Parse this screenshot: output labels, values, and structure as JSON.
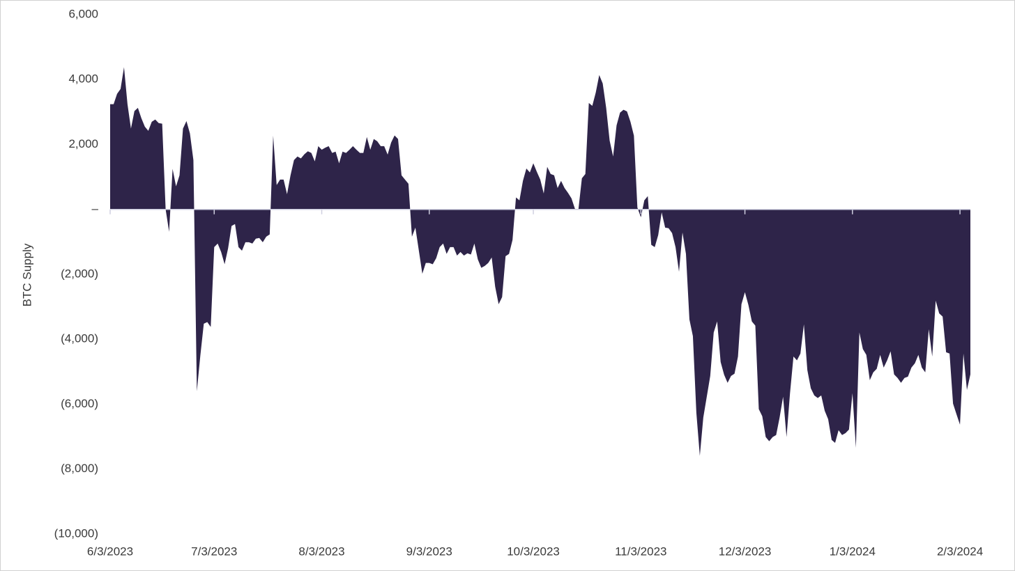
{
  "chart_data": {
    "type": "area",
    "y_label": "BTC Supply",
    "color": "#2e2449",
    "x": [
      "6/3/2023",
      "6/4/2023",
      "6/5/2023",
      "6/6/2023",
      "6/7/2023",
      "6/8/2023",
      "6/9/2023",
      "6/10/2023",
      "6/11/2023",
      "6/12/2023",
      "6/13/2023",
      "6/14/2023",
      "6/15/2023",
      "6/16/2023",
      "6/17/2023",
      "6/18/2023",
      "6/19/2023",
      "6/20/2023",
      "6/21/2023",
      "6/22/2023",
      "6/23/2023",
      "6/24/2023",
      "6/25/2023",
      "6/26/2023",
      "6/27/2023",
      "6/28/2023",
      "6/29/2023",
      "6/30/2023",
      "7/1/2023",
      "7/2/2023",
      "7/3/2023",
      "7/4/2023",
      "7/5/2023",
      "7/6/2023",
      "7/7/2023",
      "7/8/2023",
      "7/9/2023",
      "7/10/2023",
      "7/11/2023",
      "7/12/2023",
      "7/13/2023",
      "7/14/2023",
      "7/15/2023",
      "7/16/2023",
      "7/17/2023",
      "7/18/2023",
      "7/19/2023",
      "7/20/2023",
      "7/21/2023",
      "7/22/2023",
      "7/23/2023",
      "7/24/2023",
      "7/25/2023",
      "7/26/2023",
      "7/27/2023",
      "7/28/2023",
      "7/29/2023",
      "7/30/2023",
      "7/31/2023",
      "8/1/2023",
      "8/2/2023",
      "8/3/2023",
      "8/4/2023",
      "8/5/2023",
      "8/6/2023",
      "8/7/2023",
      "8/8/2023",
      "8/9/2023",
      "8/10/2023",
      "8/11/2023",
      "8/12/2023",
      "8/13/2023",
      "8/14/2023",
      "8/15/2023",
      "8/16/2023",
      "8/17/2023",
      "8/18/2023",
      "8/19/2023",
      "8/20/2023",
      "8/21/2023",
      "8/22/2023",
      "8/23/2023",
      "8/24/2023",
      "8/25/2023",
      "8/26/2023",
      "8/27/2023",
      "8/28/2023",
      "8/29/2023",
      "8/30/2023",
      "8/31/2023",
      "9/1/2023",
      "9/2/2023",
      "9/3/2023",
      "9/4/2023",
      "9/5/2023",
      "9/6/2023",
      "9/7/2023",
      "9/8/2023",
      "9/9/2023",
      "9/10/2023",
      "9/11/2023",
      "9/12/2023",
      "9/13/2023",
      "9/14/2023",
      "9/15/2023",
      "9/16/2023",
      "9/17/2023",
      "9/18/2023",
      "9/19/2023",
      "9/20/2023",
      "9/21/2023",
      "9/22/2023",
      "9/23/2023",
      "9/24/2023",
      "9/25/2023",
      "9/26/2023",
      "9/27/2023",
      "9/28/2023",
      "9/29/2023",
      "9/30/2023",
      "10/1/2023",
      "10/2/2023",
      "10/3/2023",
      "10/4/2023",
      "10/5/2023",
      "10/6/2023",
      "10/7/2023",
      "10/8/2023",
      "10/9/2023",
      "10/10/2023",
      "10/11/2023",
      "10/12/2023",
      "10/13/2023",
      "10/14/2023",
      "10/15/2023",
      "10/16/2023",
      "10/17/2023",
      "10/18/2023",
      "10/19/2023",
      "10/20/2023",
      "10/21/2023",
      "10/22/2023",
      "10/23/2023",
      "10/24/2023",
      "10/25/2023",
      "10/26/2023",
      "10/27/2023",
      "10/28/2023",
      "10/29/2023",
      "10/30/2023",
      "10/31/2023",
      "11/1/2023",
      "11/2/2023",
      "11/3/2023",
      "11/4/2023",
      "11/5/2023",
      "11/6/2023",
      "11/7/2023",
      "11/8/2023",
      "11/9/2023",
      "11/10/2023",
      "11/11/2023",
      "11/12/2023",
      "11/13/2023",
      "11/14/2023",
      "11/15/2023",
      "11/16/2023",
      "11/17/2023",
      "11/18/2023",
      "11/19/2023",
      "11/20/2023",
      "11/21/2023",
      "11/22/2023",
      "11/23/2023",
      "11/24/2023",
      "11/25/2023",
      "11/26/2023",
      "11/27/2023",
      "11/28/2023",
      "11/29/2023",
      "11/30/2023",
      "12/1/2023",
      "12/2/2023",
      "12/3/2023",
      "12/4/2023",
      "12/5/2023",
      "12/6/2023",
      "12/7/2023",
      "12/8/2023",
      "12/9/2023",
      "12/10/2023",
      "12/11/2023",
      "12/12/2023",
      "12/13/2023",
      "12/14/2023",
      "12/15/2023",
      "12/16/2023",
      "12/17/2023",
      "12/18/2023",
      "12/19/2023",
      "12/20/2023",
      "12/21/2023",
      "12/22/2023",
      "12/23/2023",
      "12/24/2023",
      "12/25/2023",
      "12/26/2023",
      "12/27/2023",
      "12/28/2023",
      "12/29/2023",
      "12/30/2023",
      "12/31/2023",
      "1/1/2024",
      "1/2/2024",
      "1/3/2024",
      "1/4/2024",
      "1/5/2024",
      "1/6/2024",
      "1/7/2024",
      "1/8/2024",
      "1/9/2024",
      "1/10/2024",
      "1/11/2024",
      "1/12/2024",
      "1/13/2024",
      "1/14/2024",
      "1/15/2024",
      "1/16/2024",
      "1/17/2024",
      "1/18/2024",
      "1/19/2024",
      "1/20/2024",
      "1/21/2024",
      "1/22/2024",
      "1/23/2024",
      "1/24/2024",
      "1/25/2024",
      "1/26/2024",
      "1/27/2024",
      "1/28/2024",
      "1/29/2024",
      "1/30/2024",
      "1/31/2024",
      "2/1/2024",
      "2/2/2024",
      "2/3/2024",
      "2/4/2024",
      "2/5/2024",
      "2/6/2024"
    ],
    "values": [
      3240,
      3240,
      3560,
      3710,
      4380,
      3240,
      2490,
      3030,
      3130,
      2810,
      2550,
      2420,
      2700,
      2770,
      2660,
      2640,
      0,
      -690,
      1250,
      710,
      1050,
      2490,
      2720,
      2340,
      1520,
      -5600,
      -4500,
      -3520,
      -3470,
      -3620,
      -1160,
      -1050,
      -1310,
      -1690,
      -1200,
      -510,
      -450,
      -1160,
      -1270,
      -1010,
      -1010,
      -1050,
      -900,
      -880,
      -1010,
      -840,
      -770,
      2270,
      750,
      920,
      920,
      470,
      1050,
      1520,
      1630,
      1570,
      1700,
      1790,
      1740,
      1480,
      1950,
      1840,
      1900,
      1950,
      1740,
      1780,
      1420,
      1780,
      1740,
      1840,
      1950,
      1840,
      1740,
      1740,
      2230,
      1840,
      2170,
      2100,
      1950,
      1950,
      1690,
      2060,
      2280,
      2170,
      1050,
      920,
      790,
      -840,
      -560,
      -1270,
      -1980,
      -1650,
      -1650,
      -1690,
      -1500,
      -1160,
      -1050,
      -1370,
      -1160,
      -1160,
      -1420,
      -1310,
      -1420,
      -1350,
      -1390,
      -1050,
      -1540,
      -1800,
      -1740,
      -1650,
      -1480,
      -2380,
      -2920,
      -2700,
      -1440,
      -1370,
      -940,
      370,
      280,
      880,
      1260,
      1140,
      1420,
      1160,
      920,
      490,
      1310,
      1090,
      1050,
      660,
      880,
      660,
      510,
      340,
      20,
      0,
      960,
      1090,
      3280,
      3190,
      3600,
      4140,
      3880,
      3130,
      2120,
      1630,
      2590,
      2980,
      3070,
      3020,
      2700,
      2270,
      60,
      -240,
      280,
      410,
      -1090,
      -1160,
      -790,
      -90,
      -560,
      -580,
      -730,
      -1160,
      -1920,
      -710,
      -1370,
      -3390,
      -3900,
      -6260,
      -7590,
      -6410,
      -5770,
      -5130,
      -3790,
      -3450,
      -4700,
      -5090,
      -5340,
      -5130,
      -5060,
      -4530,
      -2920,
      -2550,
      -2940,
      -3450,
      -3580,
      -6150,
      -6370,
      -7010,
      -7140,
      -7010,
      -6950,
      -6410,
      -5770,
      -7010,
      -5660,
      -4530,
      -4650,
      -4440,
      -3540,
      -4950,
      -5510,
      -5730,
      -5810,
      -5730,
      -6200,
      -6460,
      -7100,
      -7190,
      -6800,
      -6950,
      -6890,
      -6780,
      -5660,
      -7340,
      -3790,
      -4300,
      -4480,
      -5260,
      -5020,
      -4910,
      -4480,
      -4870,
      -4650,
      -4370,
      -5080,
      -5190,
      -5340,
      -5190,
      -5150,
      -4870,
      -4740,
      -4480,
      -4870,
      -5020,
      -3690,
      -4530,
      -2810,
      -3200,
      -3300,
      -4400,
      -4440,
      -5980,
      -6310,
      -6630,
      -4440,
      -5560,
      -5080
    ],
    "xlim": [
      "6/3/2023",
      "2/6/2024"
    ],
    "xticks": [
      "6/3/2023",
      "7/3/2023",
      "8/3/2023",
      "9/3/2023",
      "10/3/2023",
      "11/3/2023",
      "12/3/2023",
      "1/3/2024",
      "2/3/2024"
    ],
    "ylim": [
      -10000,
      6000
    ],
    "yticks": [
      {
        "value": 6000,
        "label": "6,000"
      },
      {
        "value": 4000,
        "label": "4,000"
      },
      {
        "value": 2000,
        "label": "2,000"
      },
      {
        "value": 0,
        "label": "–"
      },
      {
        "value": -2000,
        "label": "(2,000)"
      },
      {
        "value": -4000,
        "label": "(4,000)"
      },
      {
        "value": -6000,
        "label": "(6,000)"
      },
      {
        "value": -8000,
        "label": "(8,000)"
      },
      {
        "value": -10000,
        "label": "(10,000)"
      }
    ],
    "grid": false
  }
}
